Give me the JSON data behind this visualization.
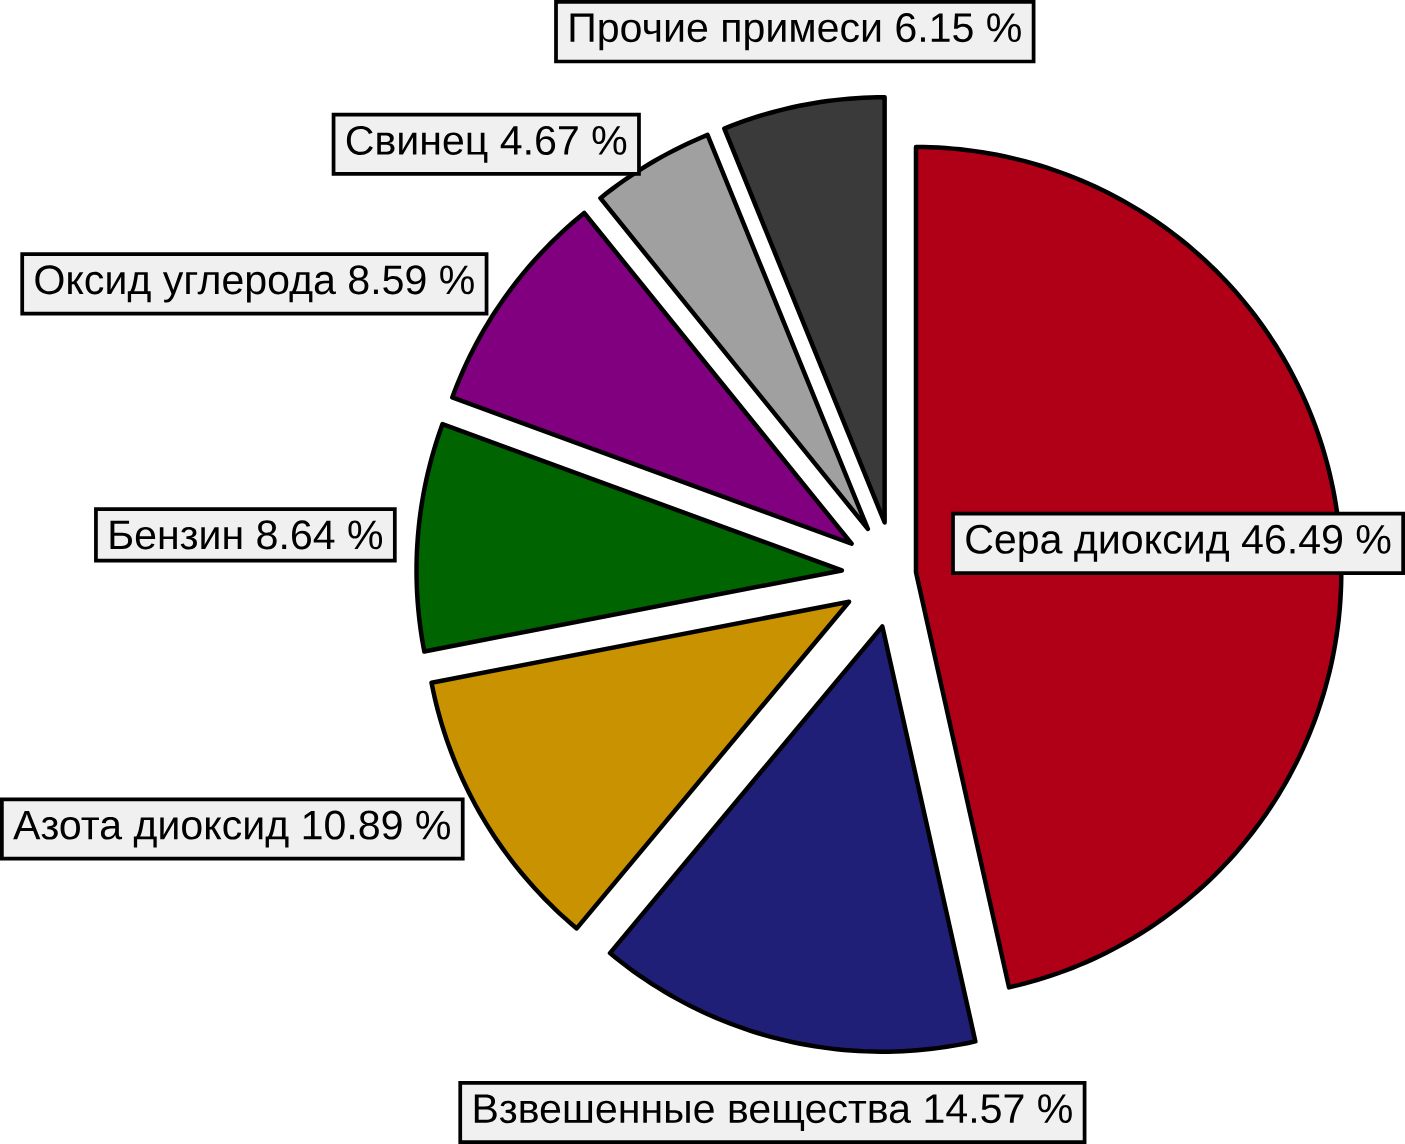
{
  "chart_data": {
    "type": "pie",
    "categories": [
      "Сера диоксид",
      "Взвешенные вещества",
      "Азота диоксид",
      "Бензин",
      "Оксид углерода",
      "Свинец",
      "Прочие примеси"
    ],
    "values": [
      46.49,
      14.57,
      10.89,
      8.64,
      8.59,
      4.67,
      6.15
    ],
    "colors": [
      "#b00018",
      "#1f1f78",
      "#c89200",
      "#006400",
      "#800080",
      "#a0a0a0",
      "#3a3a3a"
    ],
    "value_labels": [
      "46.49 %",
      "14.57 %",
      "10.89 %",
      "8.64 %",
      "8.59 %",
      "4.67 %",
      "6.15 %"
    ]
  }
}
